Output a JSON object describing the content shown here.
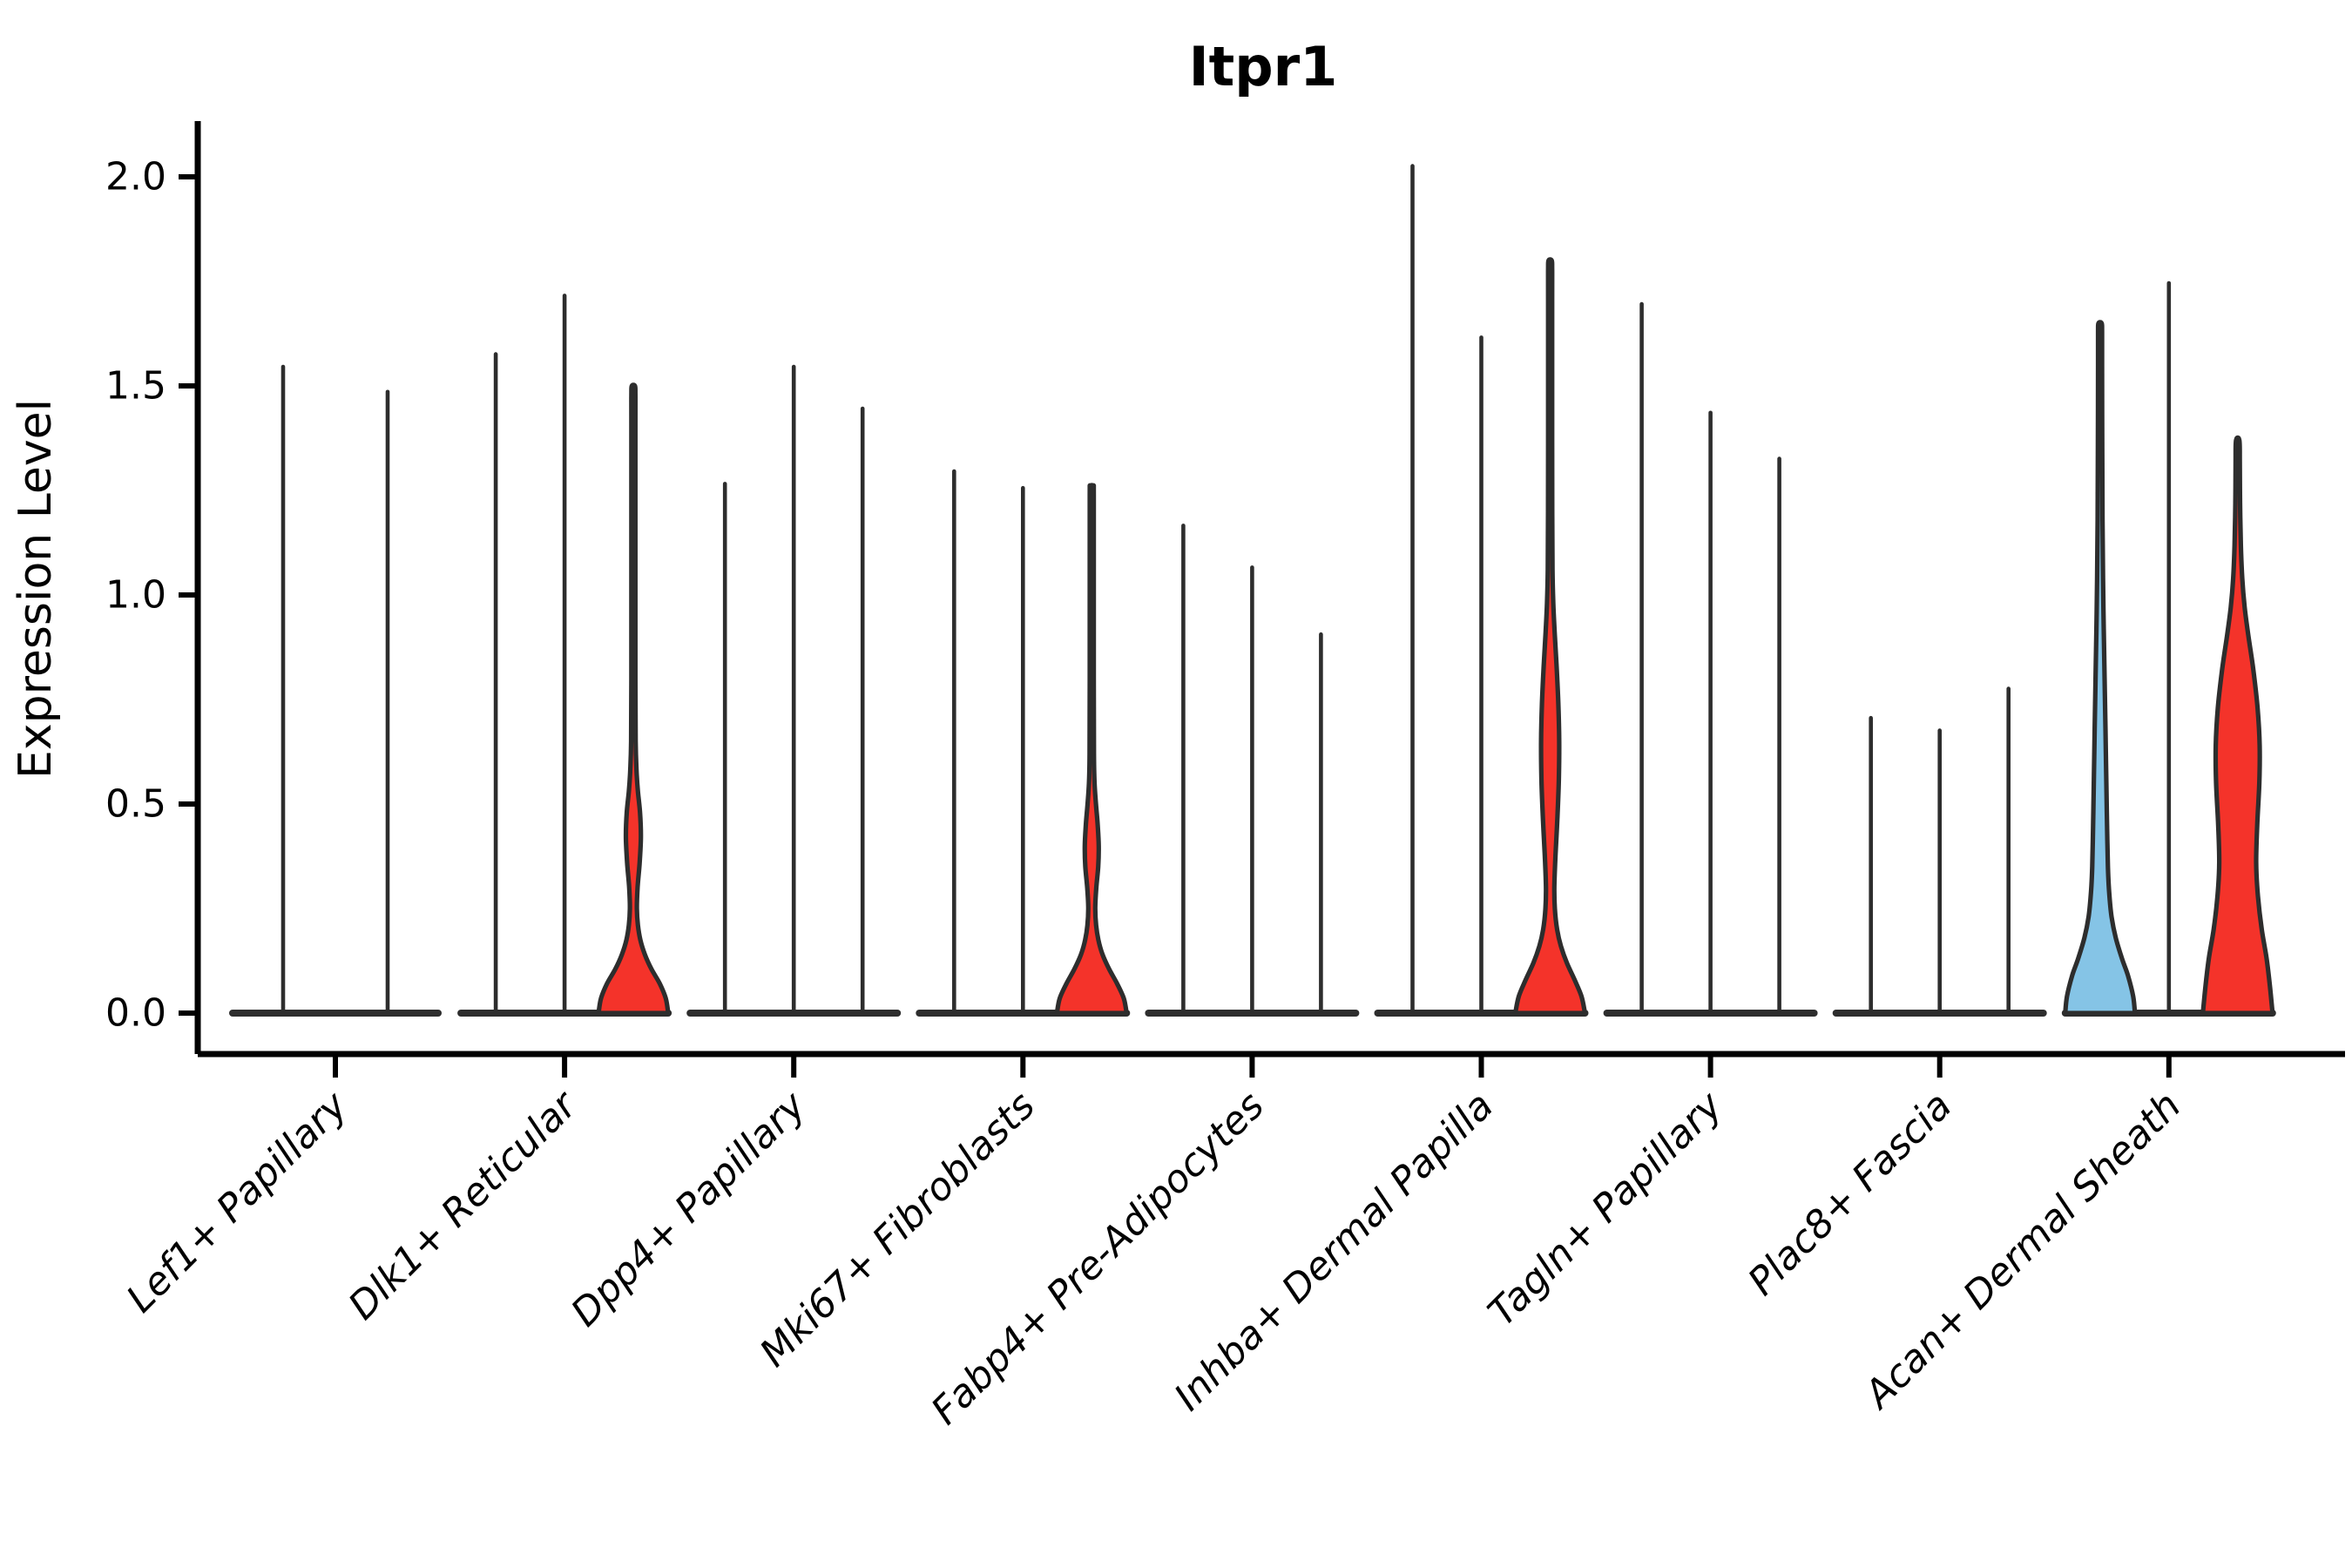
{
  "title": "Itpr1",
  "y_axis": {
    "label": "Expression Level",
    "tick_labels": [
      "0.0",
      "0.5",
      "1.0",
      "1.5",
      "2.0"
    ]
  },
  "colors": {
    "red": "#F4332A",
    "blue": "#85C4E6",
    "ink": "#2D2D2D",
    "axis": "#000000",
    "background": "#FFFFFF"
  },
  "chart_data": {
    "type": "violin",
    "title": "Itpr1",
    "xlabel": "",
    "ylabel": "Expression Level",
    "ylim": [
      0,
      2.13
    ],
    "yticks": [
      0.0,
      0.5,
      1.0,
      1.5,
      2.0
    ],
    "grid": false,
    "legend": "none",
    "note": "Single-cell expression violin plot; each group holds 2-3 violins (samples). Most violins are near-zero density spikes; 'max' is the top of each violin spike in expression units. 'profile' = [expression value, width fraction of max half-width] for filled violins.",
    "groups": [
      {
        "label": "Lef1+ Papillary",
        "violins": [
          {
            "max": 1.55,
            "fill": "none"
          },
          {
            "max": 1.49,
            "fill": "none"
          }
        ]
      },
      {
        "label": "Dlk1+ Reticular",
        "violins": [
          {
            "max": 1.58,
            "fill": "none"
          },
          {
            "max": 1.72,
            "fill": "none"
          },
          {
            "max": 1.5,
            "fill": "red",
            "profile": [
              [
                0,
                1.0
              ],
              [
                0.035,
                0.93
              ],
              [
                0.07,
                0.76
              ],
              [
                0.105,
                0.52
              ],
              [
                0.14,
                0.33
              ],
              [
                0.175,
                0.2
              ],
              [
                0.21,
                0.13
              ],
              [
                0.25,
                0.1
              ],
              [
                0.3,
                0.12
              ],
              [
                0.36,
                0.18
              ],
              [
                0.42,
                0.215
              ],
              [
                0.48,
                0.19
              ],
              [
                0.53,
                0.13
              ],
              [
                0.58,
                0.09
              ],
              [
                0.65,
                0.065
              ],
              [
                0.8,
                0.058
              ],
              [
                1.1,
                0.058
              ],
              [
                1.4,
                0.058
              ],
              [
                1.48,
                0.058
              ],
              [
                1.5,
                0.045
              ]
            ]
          }
        ]
      },
      {
        "label": "Dpp4+ Papillary",
        "violins": [
          {
            "max": 1.27,
            "fill": "none"
          },
          {
            "max": 1.55,
            "fill": "none"
          },
          {
            "max": 1.45,
            "fill": "none"
          }
        ]
      },
      {
        "label": "Mki67+ Fibroblasts",
        "violins": [
          {
            "max": 1.3,
            "fill": "none"
          },
          {
            "max": 1.26,
            "fill": "none"
          },
          {
            "max": 1.26,
            "fill": "red",
            "profile": [
              [
                0,
                1.0
              ],
              [
                0.035,
                0.92
              ],
              [
                0.07,
                0.73
              ],
              [
                0.105,
                0.5
              ],
              [
                0.14,
                0.31
              ],
              [
                0.175,
                0.19
              ],
              [
                0.21,
                0.125
              ],
              [
                0.25,
                0.1
              ],
              [
                0.3,
                0.13
              ],
              [
                0.35,
                0.185
              ],
              [
                0.4,
                0.2
              ],
              [
                0.45,
                0.17
              ],
              [
                0.5,
                0.12
              ],
              [
                0.55,
                0.08
              ],
              [
                0.62,
                0.062
              ],
              [
                0.8,
                0.058
              ],
              [
                1.05,
                0.058
              ],
              [
                1.24,
                0.058
              ],
              [
                1.26,
                0.045
              ]
            ]
          }
        ]
      },
      {
        "label": "Fabp4+ Pre-Adipocytes",
        "violins": [
          {
            "max": 1.17,
            "fill": "none"
          },
          {
            "max": 1.07,
            "fill": "none"
          },
          {
            "max": 0.91,
            "fill": "none"
          }
        ]
      },
      {
        "label": "Inhba+ Dermal Papilla",
        "violins": [
          {
            "max": 2.03,
            "fill": "none"
          },
          {
            "max": 1.62,
            "fill": "none"
          },
          {
            "max": 1.8,
            "fill": "red",
            "profile": [
              [
                0,
                1.0
              ],
              [
                0.04,
                0.9
              ],
              [
                0.08,
                0.7
              ],
              [
                0.12,
                0.48
              ],
              [
                0.16,
                0.31
              ],
              [
                0.2,
                0.2
              ],
              [
                0.25,
                0.135
              ],
              [
                0.3,
                0.12
              ],
              [
                0.38,
                0.155
              ],
              [
                0.47,
                0.21
              ],
              [
                0.56,
                0.25
              ],
              [
                0.65,
                0.26
              ],
              [
                0.74,
                0.235
              ],
              [
                0.83,
                0.185
              ],
              [
                0.91,
                0.13
              ],
              [
                0.98,
                0.09
              ],
              [
                1.06,
                0.068
              ],
              [
                1.2,
                0.06
              ],
              [
                1.45,
                0.058
              ],
              [
                1.7,
                0.058
              ],
              [
                1.78,
                0.058
              ],
              [
                1.8,
                0.045
              ]
            ]
          }
        ]
      },
      {
        "label": "Tagln+ Papillary",
        "violins": [
          {
            "max": 1.7,
            "fill": "none"
          },
          {
            "max": 1.44,
            "fill": "none"
          },
          {
            "max": 1.33,
            "fill": "none"
          }
        ]
      },
      {
        "label": "Plac8+ Fascia",
        "violins": [
          {
            "max": 0.71,
            "fill": "none"
          },
          {
            "max": 0.68,
            "fill": "none"
          },
          {
            "max": 0.78,
            "fill": "none"
          }
        ]
      },
      {
        "label": "Acan+ Dermal Sheath",
        "violins": [
          {
            "max": 1.65,
            "fill": "blue",
            "profile": [
              [
                0,
                1.0
              ],
              [
                0.04,
                0.95
              ],
              [
                0.09,
                0.8
              ],
              [
                0.13,
                0.63
              ],
              [
                0.18,
                0.45
              ],
              [
                0.23,
                0.33
              ],
              [
                0.29,
                0.26
              ],
              [
                0.35,
                0.225
              ],
              [
                0.45,
                0.2
              ],
              [
                0.55,
                0.18
              ],
              [
                0.68,
                0.155
              ],
              [
                0.8,
                0.13
              ],
              [
                0.92,
                0.105
              ],
              [
                1.04,
                0.085
              ],
              [
                1.18,
                0.07
              ],
              [
                1.35,
                0.062
              ],
              [
                1.55,
                0.058
              ],
              [
                1.63,
                0.058
              ],
              [
                1.65,
                0.045
              ]
            ]
          },
          {
            "max": 1.75,
            "fill": "none"
          },
          {
            "max": 1.37,
            "fill": "red",
            "profile": [
              [
                0,
                1.0
              ],
              [
                0.06,
                0.93
              ],
              [
                0.13,
                0.83
              ],
              [
                0.2,
                0.69
              ],
              [
                0.28,
                0.58
              ],
              [
                0.36,
                0.53
              ],
              [
                0.45,
                0.56
              ],
              [
                0.55,
                0.62
              ],
              [
                0.64,
                0.63
              ],
              [
                0.73,
                0.57
              ],
              [
                0.82,
                0.45
              ],
              [
                0.9,
                0.31
              ],
              [
                0.97,
                0.2
              ],
              [
                1.04,
                0.13
              ],
              [
                1.12,
                0.09
              ],
              [
                1.22,
                0.068
              ],
              [
                1.32,
                0.06
              ],
              [
                1.37,
                0.048
              ]
            ]
          }
        ]
      }
    ]
  }
}
